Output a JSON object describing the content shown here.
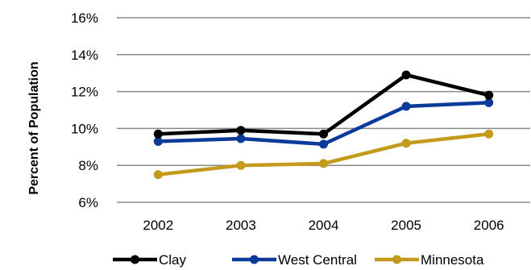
{
  "chart_data": {
    "type": "line",
    "title": "",
    "xlabel": "",
    "ylabel": "Percent of Population",
    "categories": [
      "2002",
      "2003",
      "2004",
      "2005",
      "2006"
    ],
    "ylim": [
      6,
      16
    ],
    "yticks": [
      6,
      8,
      10,
      12,
      14,
      16
    ],
    "ytick_labels": [
      "6%",
      "8%",
      "10%",
      "12%",
      "14%",
      "16%"
    ],
    "grid": true,
    "legend_position": "bottom",
    "series": [
      {
        "name": "Clay",
        "color": "#000000",
        "values": [
          9.7,
          9.9,
          9.7,
          12.9,
          11.8
        ]
      },
      {
        "name": "West Central",
        "color": "#0b3b9a",
        "values": [
          9.3,
          9.45,
          9.15,
          11.2,
          11.4
        ]
      },
      {
        "name": "Minnesota",
        "color": "#c49a1c",
        "values": [
          7.5,
          8.0,
          8.1,
          9.2,
          9.7
        ]
      }
    ]
  }
}
